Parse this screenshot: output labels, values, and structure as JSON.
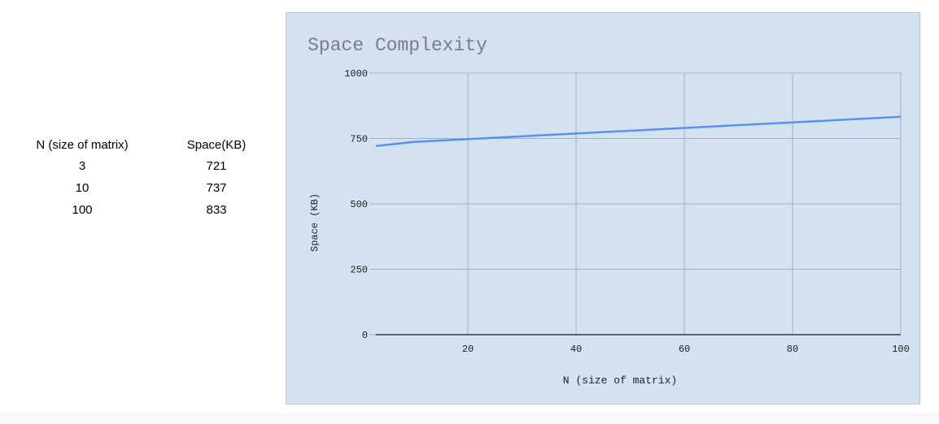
{
  "table": {
    "headers": [
      "N (size of matrix)",
      "Space(KB)"
    ],
    "rows": [
      [
        "3",
        "721"
      ],
      [
        "10",
        "737"
      ],
      [
        "100",
        "833"
      ]
    ]
  },
  "chart_data": {
    "type": "line",
    "title": "Space Complexity",
    "xlabel": "N (size of matrix)",
    "ylabel": "Space (KB)",
    "x": [
      3,
      10,
      100
    ],
    "series": [
      {
        "values": [
          721,
          737,
          833
        ]
      }
    ],
    "xlim": [
      3,
      100
    ],
    "ylim": [
      0,
      1000
    ],
    "xticks": [
      20,
      40,
      60,
      80,
      100
    ],
    "yticks": [
      0,
      250,
      500,
      750,
      1000
    ],
    "grid": true,
    "colors": {
      "background": "#d4e1f0",
      "line": "#5b8ff0",
      "grid": "#a3b1c4",
      "axis": "#5f6368",
      "text": "#202124",
      "title": "#7d7d7d"
    }
  }
}
